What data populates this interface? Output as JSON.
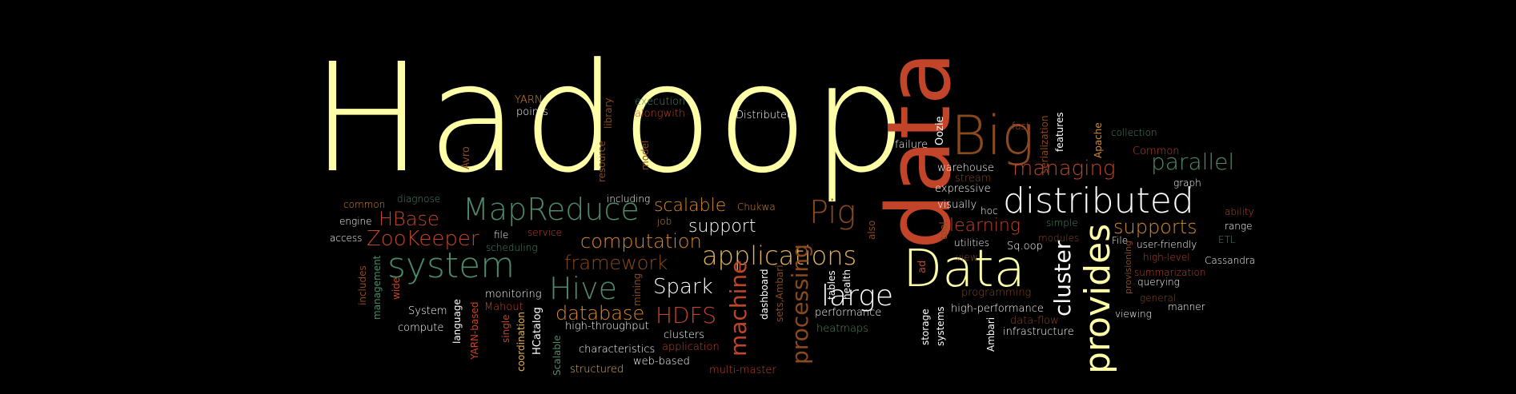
{
  "palette": {
    "background": "#000000",
    "cream": "#FFFFA8",
    "orange": "#D88A2C",
    "rust": "#C2452A",
    "teal": "#4E8A6B",
    "tan": "#E3B25A",
    "white": "#FFFFFF",
    "brown": "#8A4A1E"
  },
  "words": {
    "hadoop": "Hadoop",
    "data_v": "data",
    "big": "Big",
    "data_h": "Data",
    "distributed": "distributed",
    "provides": "provides",
    "system": "system",
    "mapreduce": "MapReduce",
    "hive": "Hive",
    "applications": "applications",
    "large": "large",
    "pig": "Pig",
    "hdfs": "HDFS",
    "zookeeper": "ZooKeeper",
    "hbase": "HBase",
    "computation": "computation",
    "framework": "framework",
    "database": "database",
    "spark": "Spark",
    "support": "support",
    "scalable": "scalable",
    "processing": "processing",
    "machine": "machine",
    "cluster": "cluster",
    "parallel": "parallel",
    "managing": "managing",
    "supports": "supports",
    "learning": "learning",
    "yarn": "YARN",
    "points": "points",
    "execution": "execution",
    "alongwith": "alongwith",
    "distributed_small": "Distributed",
    "library": "library",
    "avro": "Avro",
    "resource": "resource",
    "model": "model",
    "including": "including",
    "diagnose": "diagnose",
    "common": "common",
    "engine": "engine",
    "access": "access",
    "file": "file",
    "service": "service",
    "scheduling": "scheduling",
    "job": "job",
    "chukwa": "Chukwa",
    "failure": "failure",
    "warehouse": "warehouse",
    "stream": "stream",
    "expressive": "expressive",
    "visually": "visually",
    "hoc": "hoc",
    "oozie": "Oozie",
    "fast": "fast",
    "serialization": "serialization",
    "features": "features",
    "apache": "Apache",
    "collection": "collection",
    "common_cap": "Common",
    "graph": "graph",
    "ability": "ability",
    "range": "range",
    "etl": "ETL",
    "file_cap": "File",
    "user_friendly": "user-friendly",
    "high_level": "high-level",
    "cassandra": "Cassandra",
    "summarization": "summarization",
    "querying": "querying",
    "general": "general",
    "manner": "manner",
    "viewing": "viewing",
    "modules": "modules",
    "simple": "simple",
    "sqoop": "Sq.oop",
    "view": "view",
    "utilities": "utilities",
    "tool": "tool",
    "also": "also",
    "ad": "ad",
    "programming": "programming",
    "high_performance": "high-performance",
    "data_flow": "data-flow",
    "infrastructure": "infrastructure",
    "ambari": "Ambari",
    "systems": "systems",
    "storage": "storage",
    "performance": "performance",
    "heatmaps": "heatmaps",
    "health": "health",
    "tables": "tables",
    "sets_ambari": "sets,Ambari",
    "dashboard": "dashboard",
    "multi_master": "multi-master",
    "web_based": "web-based",
    "application": "application",
    "structured": "structured",
    "characteristics": "characteristics",
    "clusters": "clusters",
    "high_throughput": "high-throughput",
    "mining": "mining",
    "hcatalog": "HCatalog",
    "scalable_cap": "Scalable",
    "coordination": "coordination",
    "single": "single",
    "yarn_based": "YARN-based",
    "language": "language",
    "mahout": "Mahout",
    "monitoring": "monitoring",
    "system_cap": "System",
    "compute": "compute",
    "wide": "wide",
    "management": "management",
    "includes": "includes",
    "provisioning": "provisioning"
  }
}
